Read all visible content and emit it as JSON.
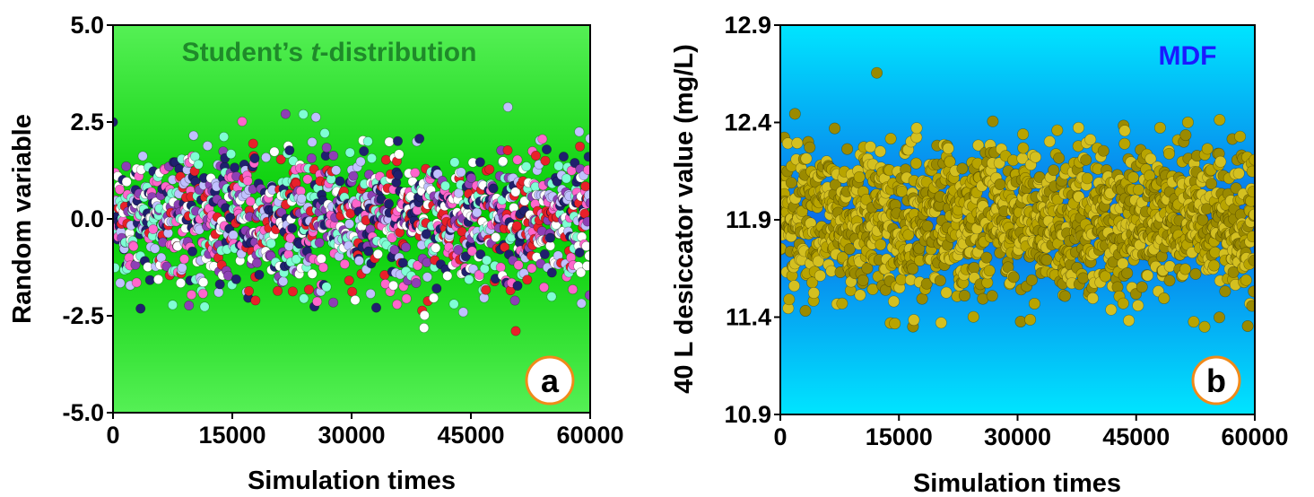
{
  "chart_data": [
    {
      "type": "scatter",
      "title": "Student’s t-distribution",
      "title_parts": [
        "Student’s ",
        "t",
        "-distribution"
      ],
      "panel_label": "a",
      "xlabel": "Simulation times",
      "ylabel": "Random variable",
      "xlim": [
        0,
        60000
      ],
      "ylim": [
        -5.0,
        5.0
      ],
      "xticks": [
        "0",
        "15000",
        "30000",
        "45000",
        "60000"
      ],
      "xtick_values": [
        0,
        15000,
        30000,
        45000,
        60000
      ],
      "yticks": [
        "-5.0",
        "-2.5",
        "0.0",
        "2.5",
        "5.0"
      ],
      "ytick_values": [
        -5.0,
        -2.5,
        0.0,
        2.5,
        5.0
      ],
      "grid": false,
      "distribution": {
        "center": 0.0,
        "spread": 0.9,
        "x_spacing": 40,
        "observed_min": -3.4,
        "observed_max": 3.3
      },
      "colors": {
        "background_center": "#00cc00",
        "background_edge": "#55f055",
        "title": "#1f8a2a",
        "point_palette": [
          "#e8202a",
          "#8e3fb5",
          "#ff66cc",
          "#20206e",
          "#7fffd4",
          "#ffffff",
          "#c0c0ff"
        ]
      }
    },
    {
      "type": "scatter",
      "title": "MDF",
      "panel_label": "b",
      "xlabel": "Simulation times",
      "ylabel": "40 L desiccator value (mg/L)",
      "xlim": [
        0,
        60000
      ],
      "ylim": [
        10.9,
        12.9
      ],
      "xticks": [
        "0",
        "15000",
        "30000",
        "45000",
        "60000"
      ],
      "xtick_values": [
        0,
        15000,
        30000,
        45000,
        60000
      ],
      "yticks": [
        "10.9",
        "11.4",
        "11.9",
        "12.4",
        "12.9"
      ],
      "ytick_values": [
        10.9,
        11.4,
        11.9,
        12.4,
        12.9
      ],
      "grid": false,
      "distribution": {
        "center": 11.9,
        "spread": 0.2,
        "x_spacing": 40,
        "observed_min": 11.05,
        "observed_max": 12.75
      },
      "colors": {
        "background_center": "#0a6ee8",
        "background_edge": "#00e5ff",
        "title": "#1a1aff",
        "point_palette": [
          "#b8a400",
          "#9a8a00",
          "#d4c020"
        ]
      }
    }
  ]
}
